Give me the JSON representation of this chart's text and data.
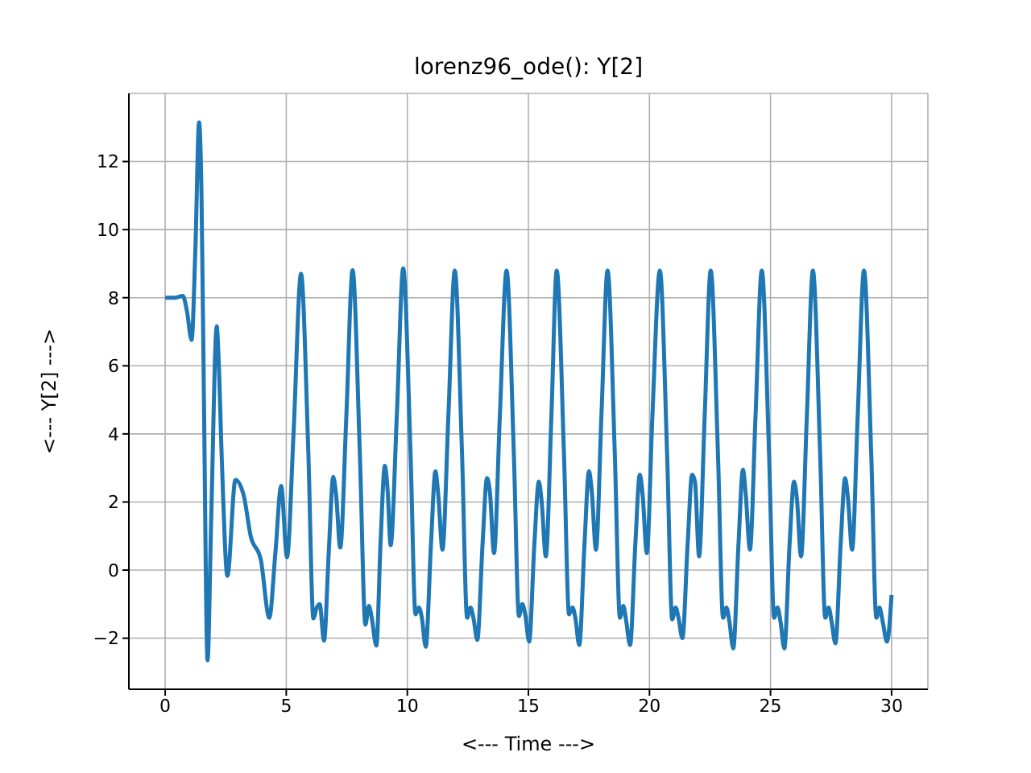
{
  "chart_data": {
    "type": "line",
    "title": "lorenz96_ode(): Y[2]",
    "xlabel": "<--- Time --->",
    "ylabel": "<--- Y[2] --->",
    "xlim": [
      -1.5,
      31.5
    ],
    "ylim": [
      -3.5,
      14
    ],
    "xticks": [
      0,
      5,
      10,
      15,
      20,
      25,
      30
    ],
    "yticks": [
      -2,
      0,
      2,
      4,
      6,
      8,
      10,
      12
    ],
    "grid": true,
    "series": [
      {
        "color": "#1f77b4",
        "x": [
          0,
          0.4,
          0.73,
          0.9,
          1.09,
          1.25,
          1.4,
          1.5,
          1.6,
          1.75,
          1.9,
          2.13,
          2.2,
          2.35,
          2.57,
          2.9,
          3.24,
          3.53,
          3.95,
          4.3,
          4.55,
          4.79,
          5.03,
          5.3,
          5.61,
          5.91,
          6.12,
          6.26,
          6.38,
          6.56,
          6.76,
          6.94,
          7.06,
          7.23,
          7.48,
          7.74,
          8.04,
          8.27,
          8.41,
          8.53,
          8.72,
          8.9,
          9.07,
          9.19,
          9.31,
          9.57,
          9.83,
          10.13,
          10.34,
          10.48,
          10.6,
          10.76,
          10.98,
          11.16,
          11.28,
          11.45,
          11.7,
          11.96,
          12.26,
          12.47,
          12.61,
          12.73,
          12.89,
          13.11,
          13.29,
          13.41,
          13.58,
          13.82,
          14.1,
          14.4,
          14.61,
          14.75,
          14.87,
          15.03,
          15.25,
          15.43,
          15.55,
          15.72,
          15.95,
          16.17,
          16.47,
          16.68,
          16.82,
          16.94,
          17.1,
          17.32,
          17.5,
          17.62,
          17.79,
          18.02,
          18.27,
          18.57,
          18.78,
          18.92,
          19.04,
          19.2,
          19.42,
          19.6,
          19.72,
          19.89,
          20.12,
          20.43,
          20.73,
          20.94,
          21.08,
          21.2,
          21.36,
          21.58,
          21.76,
          21.88,
          22.05,
          22.28,
          22.53,
          22.83,
          23.04,
          23.18,
          23.3,
          23.46,
          23.68,
          23.86,
          23.98,
          24.15,
          24.38,
          24.64,
          24.94,
          25.15,
          25.29,
          25.41,
          25.57,
          25.79,
          25.97,
          26.09,
          26.26,
          26.5,
          26.75,
          27.05,
          27.26,
          27.4,
          27.52,
          27.68,
          27.9,
          28.08,
          28.2,
          28.37,
          28.6,
          28.86,
          29.16,
          29.37,
          29.5,
          29.63,
          29.81,
          30
        ],
        "values": [
          8,
          8,
          8.05,
          7.6,
          6.76,
          9.5,
          13.15,
          11,
          5,
          -2.65,
          1.5,
          7.16,
          6.3,
          3,
          -0.17,
          2.65,
          2.2,
          1,
          0.3,
          -1.4,
          0.5,
          2.47,
          0.38,
          4,
          8.7,
          3.5,
          -1.42,
          -1.1,
          -1,
          -2.07,
          0.6,
          2.74,
          2.2,
          0.66,
          4.5,
          8.81,
          3.4,
          -1.6,
          -1.05,
          -1.4,
          -2.22,
          0.9,
          3.06,
          2.3,
          0.73,
          4.6,
          8.86,
          3.5,
          -1.3,
          -1.1,
          -1.4,
          -2.25,
          0.8,
          2.9,
          2.2,
          0.6,
          4.6,
          8.8,
          3.4,
          -1.4,
          -1.1,
          -1.4,
          -2.05,
          0.8,
          2.7,
          2.3,
          0.5,
          4.5,
          8.8,
          3.4,
          -1.35,
          -1,
          -1.3,
          -2.1,
          0.8,
          2.6,
          2,
          0.4,
          4.5,
          8.8,
          3.4,
          -1.3,
          -1.1,
          -1.4,
          -2.2,
          0.8,
          2.9,
          2.3,
          0.6,
          4.6,
          8.8,
          3.4,
          -1.4,
          -1.05,
          -1.5,
          -2.2,
          0.8,
          2.8,
          2.2,
          0.5,
          4.5,
          8.8,
          3.4,
          -1.45,
          -1.1,
          -1.4,
          -2,
          0.8,
          2.8,
          2.6,
          0.4,
          4.5,
          8.8,
          3.4,
          -1.4,
          -1.1,
          -1.5,
          -2.3,
          0.8,
          2.95,
          2.2,
          0.6,
          4.5,
          8.8,
          3.4,
          -1.4,
          -1.1,
          -1.5,
          -2.3,
          0.8,
          2.6,
          2.1,
          0.4,
          4.5,
          8.8,
          3.4,
          -1.4,
          -1.1,
          -1.5,
          -2.15,
          0.8,
          2.7,
          2.1,
          0.6,
          4.5,
          8.8,
          3.4,
          -1.4,
          -1.1,
          -1.5,
          -2.1,
          -0.73
        ]
      }
    ]
  }
}
